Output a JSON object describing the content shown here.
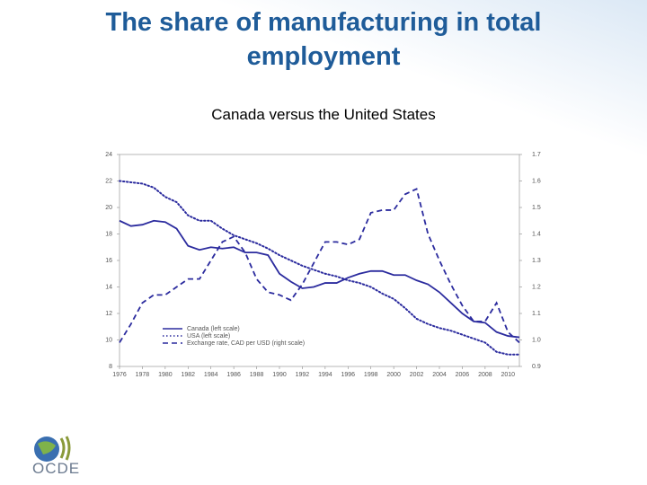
{
  "header": {
    "title": "The share of manufacturing in total employment",
    "subtitle": "Canada versus the United States"
  },
  "logo": {
    "text": "OCDE"
  },
  "chart_data": {
    "type": "line",
    "x": [
      1976,
      1977,
      1978,
      1979,
      1980,
      1981,
      1982,
      1983,
      1984,
      1985,
      1986,
      1987,
      1988,
      1989,
      1990,
      1991,
      1992,
      1993,
      1994,
      1995,
      1996,
      1997,
      1998,
      1999,
      2000,
      2001,
      2002,
      2003,
      2004,
      2005,
      2006,
      2007,
      2008,
      2009,
      2010,
      2011
    ],
    "xlim": [
      1976,
      2011
    ],
    "xticks": [
      1976,
      1978,
      1980,
      1982,
      1984,
      1986,
      1988,
      1990,
      1992,
      1994,
      1996,
      1998,
      2000,
      2002,
      2004,
      2006,
      2008,
      2010
    ],
    "ylim": [
      8,
      24
    ],
    "yticks": [
      8,
      10,
      12,
      14,
      16,
      18,
      20,
      22,
      24
    ],
    "y2lim": [
      0.9,
      1.7
    ],
    "y2ticks": [
      0.9,
      {
        "value": 1,
        "label": "1.0"
      },
      1.1,
      1.2,
      1.3,
      1.4,
      1.5,
      1.6,
      1.7
    ],
    "legend": "bottom-left",
    "series": [
      {
        "name": "Canada (left scale)",
        "color": "#2b2b9e",
        "style": "solid",
        "values": [
          19.0,
          18.6,
          18.7,
          19.0,
          18.9,
          18.4,
          17.1,
          16.8,
          17.0,
          16.9,
          17.0,
          16.6,
          16.6,
          16.4,
          15.0,
          14.4,
          13.9,
          14.0,
          14.3,
          14.3,
          14.7,
          15.0,
          15.2,
          15.2,
          14.9,
          14.9,
          14.5,
          14.2,
          13.6,
          12.8,
          12.0,
          11.4,
          11.3,
          10.6,
          10.3,
          10.2
        ]
      },
      {
        "name": "USA (left scale)",
        "color": "#2b2b9e",
        "style": "dotted",
        "values": [
          22.0,
          21.9,
          21.8,
          21.5,
          20.8,
          20.4,
          19.4,
          19.0,
          19.0,
          18.4,
          17.9,
          17.6,
          17.3,
          16.9,
          16.4,
          16.0,
          15.6,
          15.3,
          15.0,
          14.8,
          14.5,
          14.3,
          14.0,
          13.5,
          13.1,
          12.4,
          11.6,
          11.2,
          10.9,
          10.7,
          10.4,
          10.1,
          9.8,
          9.1,
          8.9,
          8.9
        ]
      },
      {
        "name": "Exchange rate, CAD per USD (right scale)",
        "color": "#2b2b9e",
        "style": "dashed",
        "axis": "y2",
        "values": [
          0.99,
          1.06,
          1.14,
          1.17,
          1.17,
          1.2,
          1.23,
          1.23,
          1.3,
          1.37,
          1.39,
          1.33,
          1.23,
          1.18,
          1.17,
          1.15,
          1.21,
          1.29,
          1.37,
          1.37,
          1.36,
          1.38,
          1.48,
          1.49,
          1.49,
          1.55,
          1.57,
          1.4,
          1.3,
          1.21,
          1.13,
          1.07,
          1.07,
          1.14,
          1.03,
          0.99
        ]
      }
    ]
  }
}
